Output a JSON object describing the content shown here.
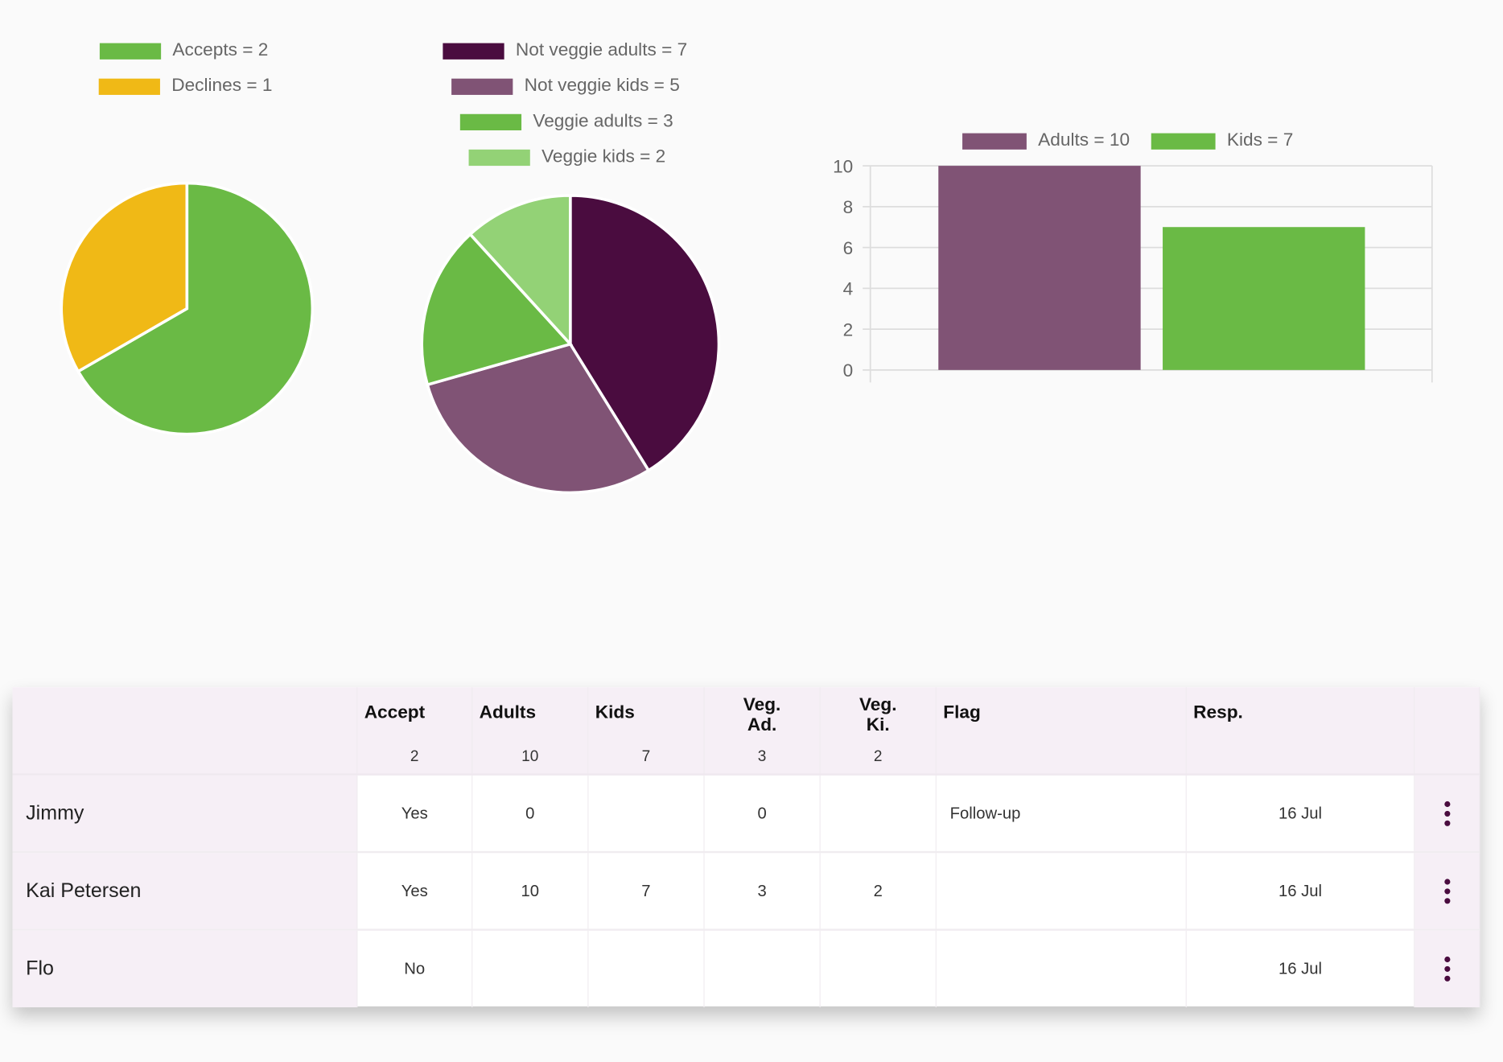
{
  "colors": {
    "green": "#6aba45",
    "yellow": "#f0b916",
    "dark": "#4a0c3f",
    "mauve": "#805375",
    "lightgreen": "#93d276"
  },
  "chart_data": [
    {
      "type": "pie",
      "legend": [
        "Accepts = 2",
        "Declines = 1"
      ],
      "labels": [
        "Accepts",
        "Declines"
      ],
      "values": [
        2,
        1
      ],
      "colors": [
        "#6aba45",
        "#f0b916"
      ]
    },
    {
      "type": "pie",
      "legend": [
        "Not veggie adults = 7",
        "Not veggie kids = 5",
        "Veggie adults = 3",
        "Veggie kids = 2"
      ],
      "labels": [
        "Not veggie adults",
        "Not veggie kids",
        "Veggie adults",
        "Veggie kids"
      ],
      "values": [
        7,
        5,
        3,
        2
      ],
      "colors": [
        "#4a0c3f",
        "#805375",
        "#6aba45",
        "#93d276"
      ]
    },
    {
      "type": "bar",
      "legend": [
        "Adults = 10",
        "Kids = 7"
      ],
      "categories": [
        "Adults",
        "Kids"
      ],
      "values": [
        10,
        7
      ],
      "colors": [
        "#805375",
        "#6aba45"
      ],
      "ylim": [
        0,
        10
      ],
      "yticks": [
        "0",
        "2",
        "4",
        "6",
        "8",
        "10"
      ],
      "grid": true,
      "legend_position": "top"
    }
  ],
  "table": {
    "headers": [
      "Accept",
      "Adults",
      "Kids",
      "Veg.\nAd.",
      "Veg.\nKi.",
      "Flag",
      "Resp."
    ],
    "totals": [
      "2",
      "10",
      "7",
      "3",
      "2",
      "",
      ""
    ],
    "rows": [
      {
        "name": "Jimmy",
        "cells": [
          "Yes",
          "0",
          "",
          "0",
          "",
          "Follow-up",
          "16 Jul"
        ]
      },
      {
        "name": "Kai Petersen",
        "cells": [
          "Yes",
          "10",
          "7",
          "3",
          "2",
          "",
          "16 Jul"
        ]
      },
      {
        "name": "Flo",
        "cells": [
          "No",
          "",
          "",
          "",
          "",
          "",
          "16 Jul"
        ]
      }
    ]
  }
}
